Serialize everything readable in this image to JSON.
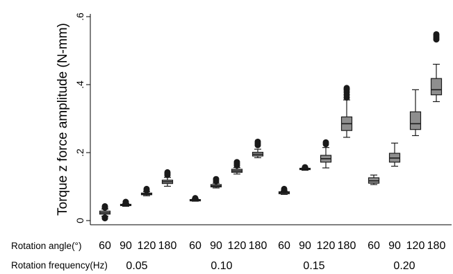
{
  "chart_data": {
    "type": "box",
    "ylabel": "Torque z force amplitude (N-mm)",
    "ylim": [
      0,
      0.6
    ],
    "yticks": [
      {
        "value": 0,
        "label": "0"
      },
      {
        "value": 0.2,
        "label": ".2"
      },
      {
        "value": 0.4,
        "label": ".4"
      },
      {
        "value": 0.6,
        "label": ".6"
      }
    ],
    "grid": false,
    "row_labels": {
      "angle": "Rotation angle(°)",
      "frequency": "Rotation frequency(Hz)"
    },
    "groups": [
      {
        "frequency": "0.05",
        "boxes": [
          {
            "angle": "60",
            "min": 0.013,
            "q1": 0.019,
            "median": 0.023,
            "q3": 0.028,
            "max": 0.034,
            "outliers": [
              0.007,
              0.009,
              0.038,
              0.042
            ]
          },
          {
            "angle": "90",
            "min": 0.042,
            "q1": 0.044,
            "median": 0.046,
            "q3": 0.048,
            "max": 0.05,
            "outliers": [
              0.053,
              0.055
            ]
          },
          {
            "angle": "120",
            "min": 0.073,
            "q1": 0.076,
            "median": 0.078,
            "q3": 0.081,
            "max": 0.085,
            "outliers": [
              0.089,
              0.093
            ]
          },
          {
            "angle": "180",
            "min": 0.101,
            "q1": 0.109,
            "median": 0.114,
            "q3": 0.119,
            "max": 0.127,
            "outliers": [
              0.134,
              0.138,
              0.142
            ]
          }
        ]
      },
      {
        "frequency": "0.10",
        "boxes": [
          {
            "angle": "60",
            "min": 0.057,
            "q1": 0.058,
            "median": 0.06,
            "q3": 0.062,
            "max": 0.064,
            "outliers": [
              0.066
            ]
          },
          {
            "angle": "90",
            "min": 0.096,
            "q1": 0.099,
            "median": 0.102,
            "q3": 0.106,
            "max": 0.11,
            "outliers": [
              0.116,
              0.122
            ]
          },
          {
            "angle": "120",
            "min": 0.137,
            "q1": 0.142,
            "median": 0.146,
            "q3": 0.151,
            "max": 0.156,
            "outliers": [
              0.162,
              0.167,
              0.172
            ]
          },
          {
            "angle": "180",
            "min": 0.185,
            "q1": 0.19,
            "median": 0.195,
            "q3": 0.201,
            "max": 0.21,
            "outliers": [
              0.222,
              0.227,
              0.232
            ]
          }
        ]
      },
      {
        "frequency": "0.15",
        "boxes": [
          {
            "angle": "60",
            "min": 0.077,
            "q1": 0.079,
            "median": 0.082,
            "q3": 0.085,
            "max": 0.087,
            "outliers": [
              0.09,
              0.093
            ]
          },
          {
            "angle": "90",
            "min": 0.148,
            "q1": 0.15,
            "median": 0.152,
            "q3": 0.154,
            "max": 0.155,
            "outliers": [
              0.157
            ]
          },
          {
            "angle": "120",
            "min": 0.155,
            "q1": 0.172,
            "median": 0.182,
            "q3": 0.192,
            "max": 0.215,
            "outliers": [
              0.225,
              0.23
            ]
          },
          {
            "angle": "180",
            "min": 0.245,
            "q1": 0.265,
            "median": 0.285,
            "q3": 0.305,
            "max": 0.355,
            "outliers": [
              0.362,
              0.37,
              0.378,
              0.385,
              0.39
            ]
          }
        ]
      },
      {
        "frequency": "0.20",
        "boxes": [
          {
            "angle": "60",
            "min": 0.106,
            "q1": 0.11,
            "median": 0.117,
            "q3": 0.126,
            "max": 0.134,
            "outliers": []
          },
          {
            "angle": "90",
            "min": 0.16,
            "q1": 0.172,
            "median": 0.184,
            "q3": 0.198,
            "max": 0.228,
            "outliers": []
          },
          {
            "angle": "120",
            "min": 0.25,
            "q1": 0.268,
            "median": 0.285,
            "q3": 0.32,
            "max": 0.385,
            "outliers": []
          },
          {
            "angle": "180",
            "min": 0.35,
            "q1": 0.37,
            "median": 0.385,
            "q3": 0.418,
            "max": 0.46,
            "outliers": [
              0.533,
              0.538,
              0.543,
              0.548
            ]
          }
        ]
      }
    ],
    "colors": {
      "box_fill": "#8e8e8e",
      "outline": "#1a1a1a",
      "outlier": "#1a1a1a"
    }
  }
}
